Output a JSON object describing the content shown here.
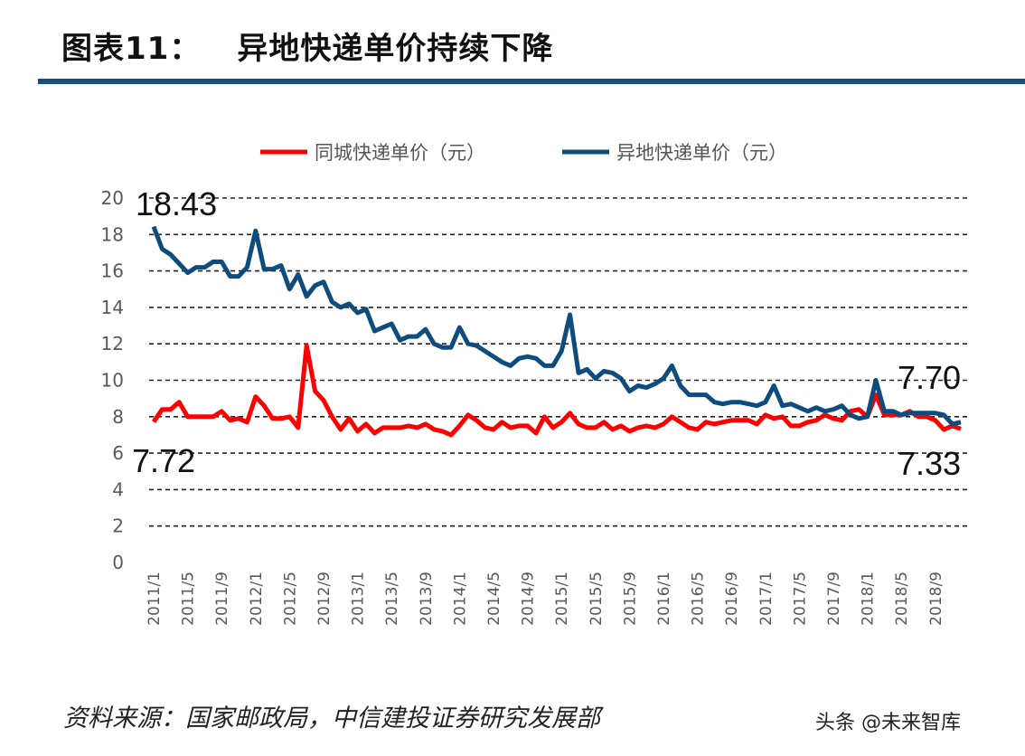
{
  "header": {
    "figure_label": "图表11：",
    "title": "异地快递单价持续下降"
  },
  "source": "资料来源：国家邮政局，中信建投证券研究发展部",
  "watermark": "头条 @未来智库",
  "chart_data": {
    "type": "line",
    "title": "",
    "xlabel": "",
    "ylabel": "",
    "ylim": [
      0,
      20
    ],
    "yticks": [
      0,
      2,
      4,
      6,
      8,
      10,
      12,
      14,
      16,
      18,
      20
    ],
    "grid": "horizontal dashed",
    "legend": "top",
    "x_range": [
      "2011/1",
      "2018/12"
    ],
    "x_tick_labels": [
      "2011/1",
      "2011/5",
      "2011/9",
      "2012/1",
      "2012/5",
      "2012/9",
      "2013/1",
      "2013/5",
      "2013/9",
      "2014/1",
      "2014/5",
      "2014/9",
      "2015/1",
      "2015/5",
      "2015/9",
      "2016/1",
      "2016/5",
      "2016/9",
      "2017/1",
      "2017/5",
      "2017/9",
      "2018/1",
      "2018/5",
      "2018/9"
    ],
    "series": [
      {
        "name": "同城快递单价（元）",
        "color": "#ff0000",
        "values": [
          7.72,
          8.4,
          8.4,
          8.8,
          8.0,
          8.0,
          8.0,
          8.0,
          8.3,
          7.8,
          7.9,
          7.7,
          9.1,
          8.6,
          7.9,
          7.9,
          8.0,
          7.4,
          11.9,
          9.4,
          8.9,
          8.0,
          7.3,
          7.9,
          7.2,
          7.6,
          7.1,
          7.4,
          7.4,
          7.4,
          7.5,
          7.4,
          7.6,
          7.3,
          7.2,
          7.0,
          7.5,
          8.1,
          7.8,
          7.4,
          7.3,
          7.7,
          7.4,
          7.5,
          7.5,
          7.1,
          8.0,
          7.4,
          7.7,
          8.2,
          7.6,
          7.4,
          7.4,
          7.7,
          7.3,
          7.5,
          7.2,
          7.4,
          7.5,
          7.4,
          7.6,
          8.0,
          7.7,
          7.4,
          7.3,
          7.7,
          7.6,
          7.7,
          7.8,
          7.8,
          7.8,
          7.6,
          8.1,
          7.9,
          8.0,
          7.5,
          7.5,
          7.7,
          7.8,
          8.1,
          7.9,
          7.8,
          8.3,
          8.4,
          8.0,
          9.2,
          8.1,
          8.1,
          8.1,
          8.3,
          8.0,
          8.0,
          7.8,
          7.3,
          7.5,
          7.33
        ]
      },
      {
        "name": "异地快递单价（元）",
        "color": "#0e4c7d",
        "values": [
          18.43,
          17.2,
          16.9,
          16.4,
          15.9,
          16.2,
          16.2,
          16.5,
          16.5,
          15.7,
          15.7,
          16.2,
          18.2,
          16.1,
          16.1,
          16.3,
          15.0,
          15.8,
          14.6,
          15.2,
          15.4,
          14.3,
          14.0,
          14.2,
          13.7,
          13.9,
          12.7,
          12.9,
          13.1,
          12.2,
          12.4,
          12.4,
          12.8,
          12.0,
          11.8,
          11.8,
          12.9,
          12.0,
          11.9,
          11.6,
          11.3,
          11.0,
          10.8,
          11.2,
          11.3,
          11.2,
          10.8,
          10.8,
          11.6,
          13.6,
          10.4,
          10.6,
          10.1,
          10.5,
          10.4,
          10.1,
          9.4,
          9.7,
          9.6,
          9.8,
          10.1,
          10.8,
          9.7,
          9.2,
          9.2,
          9.2,
          8.8,
          8.7,
          8.8,
          8.8,
          8.7,
          8.6,
          8.8,
          9.7,
          8.6,
          8.7,
          8.5,
          8.3,
          8.5,
          8.3,
          8.4,
          8.6,
          8.1,
          7.9,
          8.0,
          10.0,
          8.3,
          8.3,
          8.1,
          8.2,
          8.2,
          8.2,
          8.2,
          8.1,
          7.6,
          7.7
        ]
      }
    ],
    "annotations": [
      "18.43",
      "7.72",
      "7.70",
      "7.33"
    ]
  }
}
